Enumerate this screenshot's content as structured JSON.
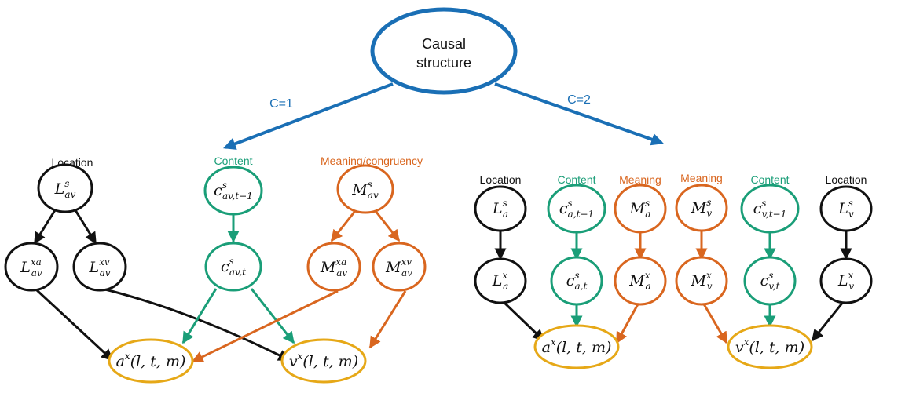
{
  "colors": {
    "black": "#111111",
    "green": "#1a9e78",
    "orange": "#d9661f",
    "gold": "#e6a817",
    "blue": "#1a6fb5"
  },
  "root": {
    "line1": "Causal",
    "line2": "structure"
  },
  "branches": {
    "c1": "C=1",
    "c2": "C=2"
  },
  "left": {
    "headers": {
      "location": "Location",
      "content": "Content",
      "meaning": "Meaning/congruency"
    },
    "nodes": {
      "L_av_s": {
        "base": "L",
        "sup": "s",
        "sub": "av"
      },
      "L_av_xa": {
        "base": "L",
        "sup": "xa",
        "sub": "av"
      },
      "L_av_xv": {
        "base": "L",
        "sup": "xv",
        "sub": "av"
      },
      "c_av_t1": {
        "base": "c",
        "sup": "s",
        "sub": "av,t−1"
      },
      "c_av_t": {
        "base": "c",
        "sup": "s",
        "sub": "av,t"
      },
      "M_av_s": {
        "base": "M",
        "sup": "s",
        "sub": "av"
      },
      "M_av_xa": {
        "base": "M",
        "sup": "xa",
        "sub": "av"
      },
      "M_av_xv": {
        "base": "M",
        "sup": "xv",
        "sub": "av"
      },
      "a_out": {
        "base": "a",
        "sup": "x",
        "args": "(l, t, m)"
      },
      "v_out": {
        "base": "v",
        "sup": "x",
        "args": "(l, t, m)"
      }
    }
  },
  "right": {
    "headers": {
      "loc_a": "Location",
      "content_a": "Content",
      "meaning_a": "Meaning",
      "meaning_v": "Meaning",
      "content_v": "Content",
      "loc_v": "Location"
    },
    "nodes": {
      "L_a_s": {
        "base": "L",
        "sup": "s",
        "sub": "a"
      },
      "L_a_x": {
        "base": "L",
        "sup": "x",
        "sub": "a"
      },
      "c_a_t1": {
        "base": "c",
        "sup": "s",
        "sub": "a,t−1"
      },
      "c_a_t": {
        "base": "c",
        "sup": "s",
        "sub": "a,t"
      },
      "M_a_s": {
        "base": "M",
        "sup": "s",
        "sub": "a"
      },
      "M_a_x": {
        "base": "M",
        "sup": "x",
        "sub": "a"
      },
      "M_v_s": {
        "base": "M",
        "sup": "s",
        "sub": "v"
      },
      "M_v_x": {
        "base": "M",
        "sup": "x",
        "sub": "v"
      },
      "c_v_t1": {
        "base": "c",
        "sup": "s",
        "sub": "v,t−1"
      },
      "c_v_t": {
        "base": "c",
        "sup": "s",
        "sub": "v,t"
      },
      "L_v_s": {
        "base": "L",
        "sup": "s",
        "sub": "v"
      },
      "L_v_x": {
        "base": "L",
        "sup": "x",
        "sub": "v"
      },
      "a_out": {
        "base": "a",
        "sup": "x",
        "args": "(l, t, m)"
      },
      "v_out": {
        "base": "v",
        "sup": "x",
        "args": "(l, t, m)"
      }
    }
  }
}
